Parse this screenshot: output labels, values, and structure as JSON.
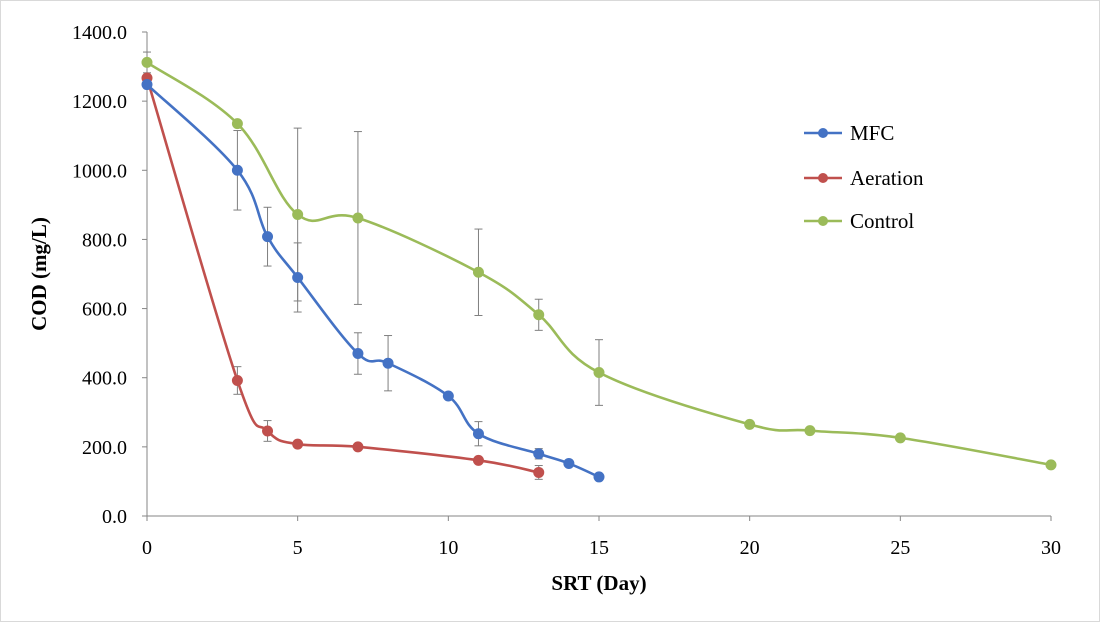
{
  "chart_data": {
    "type": "line",
    "xlabel": "SRT (Day)",
    "ylabel": "COD (mg/L)",
    "xlim": [
      0,
      30
    ],
    "ylim": [
      0,
      1400
    ],
    "xticks": [
      0,
      5,
      10,
      15,
      20,
      25,
      30
    ],
    "yticks": [
      0,
      200,
      400,
      600,
      800,
      1000,
      1200,
      1400
    ],
    "ytick_labels": [
      "0.0",
      "200.0",
      "400.0",
      "600.0",
      "800.0",
      "1000.0",
      "1200.0",
      "1400.0"
    ],
    "xtick_labels": [
      "0",
      "5",
      "10",
      "15",
      "20",
      "25",
      "30"
    ],
    "grid": false,
    "legend_position": "right",
    "smoothed": true,
    "series": [
      {
        "name": "MFC",
        "color": "#4472c4",
        "points": [
          {
            "x": 0,
            "y": 1248,
            "err": 0
          },
          {
            "x": 3,
            "y": 1000,
            "err": 115
          },
          {
            "x": 4,
            "y": 808,
            "err": 85
          },
          {
            "x": 5,
            "y": 690,
            "err": 100
          },
          {
            "x": 7,
            "y": 470,
            "err": 60
          },
          {
            "x": 8,
            "y": 442,
            "err": 80
          },
          {
            "x": 10,
            "y": 347,
            "err": 0
          },
          {
            "x": 11,
            "y": 238,
            "err": 35
          },
          {
            "x": 13,
            "y": 180,
            "err": 15
          },
          {
            "x": 14,
            "y": 152,
            "err": 0
          },
          {
            "x": 15,
            "y": 113,
            "err": 0
          }
        ]
      },
      {
        "name": "Aeration",
        "color": "#c0504d",
        "points": [
          {
            "x": 0,
            "y": 1267,
            "err": 0
          },
          {
            "x": 3,
            "y": 392,
            "err": 40
          },
          {
            "x": 4,
            "y": 246,
            "err": 30
          },
          {
            "x": 5,
            "y": 208,
            "err": 0
          },
          {
            "x": 7,
            "y": 200,
            "err": 0
          },
          {
            "x": 11,
            "y": 161,
            "err": 0
          },
          {
            "x": 13,
            "y": 126,
            "err": 20
          }
        ]
      },
      {
        "name": "Control",
        "color": "#9bbb59",
        "points": [
          {
            "x": 0,
            "y": 1312,
            "err": 30
          },
          {
            "x": 3,
            "y": 1135,
            "err": 0
          },
          {
            "x": 5,
            "y": 872,
            "err": 250
          },
          {
            "x": 7,
            "y": 862,
            "err": 250
          },
          {
            "x": 11,
            "y": 705,
            "err": 125
          },
          {
            "x": 13,
            "y": 582,
            "err": 45
          },
          {
            "x": 15,
            "y": 415,
            "err": 95
          },
          {
            "x": 20,
            "y": 265,
            "err": 0
          },
          {
            "x": 22,
            "y": 247,
            "err": 0
          },
          {
            "x": 25,
            "y": 226,
            "err": 0
          },
          {
            "x": 30,
            "y": 148,
            "err": 0
          }
        ]
      }
    ]
  }
}
